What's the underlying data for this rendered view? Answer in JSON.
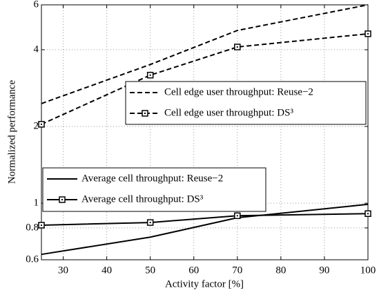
{
  "chart_data": {
    "type": "line",
    "xlabel": "Activity factor [%]",
    "ylabel": "Normalized performance",
    "x": [
      25,
      50,
      70,
      100
    ],
    "series": [
      {
        "name": "Cell edge user throughput: Reuse−2",
        "color": "#000000",
        "linestyle": "dashed",
        "marker": "none",
        "values": [
          2.46,
          3.5,
          4.76,
          6.0
        ]
      },
      {
        "name": "Cell edge user throughput: DS³",
        "color": "#000000",
        "linestyle": "dashed",
        "marker": "square",
        "values": [
          2.04,
          3.18,
          4.1,
          4.62
        ]
      },
      {
        "name": "Average cell throughput: Reuse−2",
        "color": "#000000",
        "linestyle": "solid",
        "marker": "none",
        "values": [
          0.63,
          0.736,
          0.877,
          0.99
        ]
      },
      {
        "name": "Average cell throughput: DS³",
        "color": "#000000",
        "linestyle": "solid",
        "marker": "square",
        "values": [
          0.82,
          0.84,
          0.893,
          0.91
        ]
      }
    ],
    "xlim": [
      25,
      100
    ],
    "xticks": [
      30,
      40,
      50,
      60,
      70,
      80,
      90,
      100
    ],
    "ylim": [
      0.6,
      6
    ],
    "yticks": [
      0.6,
      0.8,
      1,
      2,
      4,
      6
    ],
    "ylog": true,
    "grid": true
  }
}
